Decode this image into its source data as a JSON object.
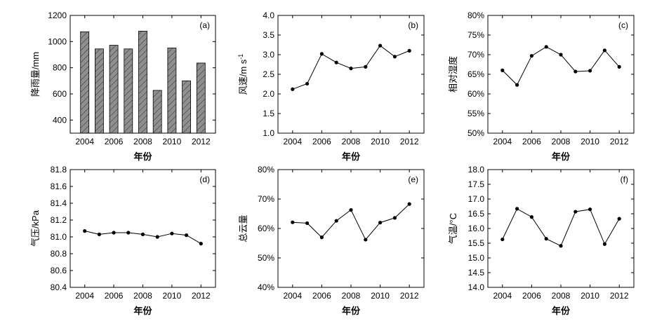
{
  "chart_data": [
    {
      "type": "bar",
      "panel_label": "(a)",
      "xlabel": "年份",
      "ylabel": "降雨量/mm",
      "x": [
        2004,
        2005,
        2006,
        2007,
        2008,
        2009,
        2010,
        2011,
        2012
      ],
      "values": [
        1075,
        944,
        972,
        944,
        1080,
        627,
        951,
        700,
        836
      ],
      "ylim": [
        300,
        1200
      ],
      "yticks": [
        400,
        600,
        800,
        1000,
        1200
      ],
      "ytick_labels": [
        "400",
        "600",
        "800",
        "1000",
        "1200"
      ],
      "xticks": [
        2004,
        2006,
        2008,
        2010,
        2012
      ],
      "xtick_labels": [
        "2004",
        "2006",
        "2008",
        "2010",
        "2012"
      ],
      "bar_fill": "#8a8a8a",
      "bar_pattern": "diagonal-hatch"
    },
    {
      "type": "line",
      "panel_label": "(b)",
      "xlabel": "年份",
      "ylabel": "风速/m s",
      "ylabel_sup": "-1",
      "x": [
        2004,
        2005,
        2006,
        2007,
        2008,
        2009,
        2010,
        2011,
        2012
      ],
      "values": [
        2.12,
        2.26,
        3.02,
        2.8,
        2.65,
        2.69,
        3.23,
        2.95,
        3.1
      ],
      "ylim": [
        1.0,
        4.0
      ],
      "yticks": [
        1.0,
        1.5,
        2.0,
        2.5,
        3.0,
        3.5,
        4.0
      ],
      "ytick_labels": [
        "1.0",
        "1.5",
        "2.0",
        "2.5",
        "3.0",
        "3.5",
        "4.0"
      ],
      "xticks": [
        2004,
        2006,
        2008,
        2010,
        2012
      ],
      "xtick_labels": [
        "2004",
        "2006",
        "2008",
        "2010",
        "2012"
      ]
    },
    {
      "type": "line",
      "panel_label": "(c)",
      "xlabel": "年份",
      "ylabel": "相对湿度",
      "x": [
        2004,
        2005,
        2006,
        2007,
        2008,
        2009,
        2010,
        2011,
        2012
      ],
      "values": [
        66.0,
        62.3,
        69.7,
        72.0,
        70.0,
        65.7,
        65.9,
        71.1,
        66.9
      ],
      "ylim": [
        50,
        80
      ],
      "yticks": [
        50,
        55,
        60,
        65,
        70,
        75,
        80
      ],
      "ytick_labels": [
        "50%",
        "55%",
        "60%",
        "65%",
        "70%",
        "75%",
        "80%"
      ],
      "xticks": [
        2004,
        2006,
        2008,
        2010,
        2012
      ],
      "xtick_labels": [
        "2004",
        "2006",
        "2008",
        "2010",
        "2012"
      ]
    },
    {
      "type": "line",
      "panel_label": "(d)",
      "xlabel": "年份",
      "ylabel": "气压/kPa",
      "x": [
        2004,
        2005,
        2006,
        2007,
        2008,
        2009,
        2010,
        2011,
        2012
      ],
      "values": [
        81.07,
        81.03,
        81.05,
        81.05,
        81.03,
        81.0,
        81.04,
        81.02,
        80.92
      ],
      "ylim": [
        80.4,
        81.8
      ],
      "yticks": [
        80.4,
        80.6,
        80.8,
        81.0,
        81.2,
        81.4,
        81.6,
        81.8
      ],
      "ytick_labels": [
        "80.4",
        "80.6",
        "80.8",
        "81.0",
        "81.2",
        "81.4",
        "81.6",
        "81.8"
      ],
      "xticks": [
        2004,
        2006,
        2008,
        2010,
        2012
      ],
      "xtick_labels": [
        "2004",
        "2006",
        "2008",
        "2010",
        "2012"
      ]
    },
    {
      "type": "line",
      "panel_label": "(e)",
      "xlabel": "年份",
      "ylabel": "总云量",
      "x": [
        2004,
        2005,
        2006,
        2007,
        2008,
        2009,
        2010,
        2011,
        2012
      ],
      "values": [
        62.1,
        61.8,
        57.0,
        62.6,
        66.3,
        56.2,
        62.0,
        63.6,
        68.3
      ],
      "ylim": [
        40,
        80
      ],
      "yticks": [
        40,
        50,
        60,
        70,
        80
      ],
      "ytick_labels": [
        "40%",
        "50%",
        "60%",
        "70%",
        "80%"
      ],
      "xticks": [
        2004,
        2006,
        2008,
        2010,
        2012
      ],
      "xtick_labels": [
        "2004",
        "2006",
        "2008",
        "2010",
        "2012"
      ]
    },
    {
      "type": "line",
      "panel_label": "(f)",
      "xlabel": "年份",
      "ylabel": "气温/°C",
      "x": [
        2004,
        2005,
        2006,
        2007,
        2008,
        2009,
        2010,
        2011,
        2012
      ],
      "values": [
        15.63,
        16.67,
        16.39,
        15.65,
        15.41,
        16.57,
        16.65,
        15.47,
        16.33
      ],
      "ylim": [
        14.0,
        18.0
      ],
      "yticks": [
        14.0,
        14.5,
        15.0,
        15.5,
        16.0,
        16.5,
        17.0,
        17.5,
        18.0
      ],
      "ytick_labels": [
        "14.0",
        "14.5",
        "15.0",
        "15.5",
        "16.0",
        "16.5",
        "17.0",
        "17.5",
        "18.0"
      ],
      "xticks": [
        2004,
        2006,
        2008,
        2010,
        2012
      ],
      "xtick_labels": [
        "2004",
        "2006",
        "2008",
        "2010",
        "2012"
      ]
    }
  ]
}
